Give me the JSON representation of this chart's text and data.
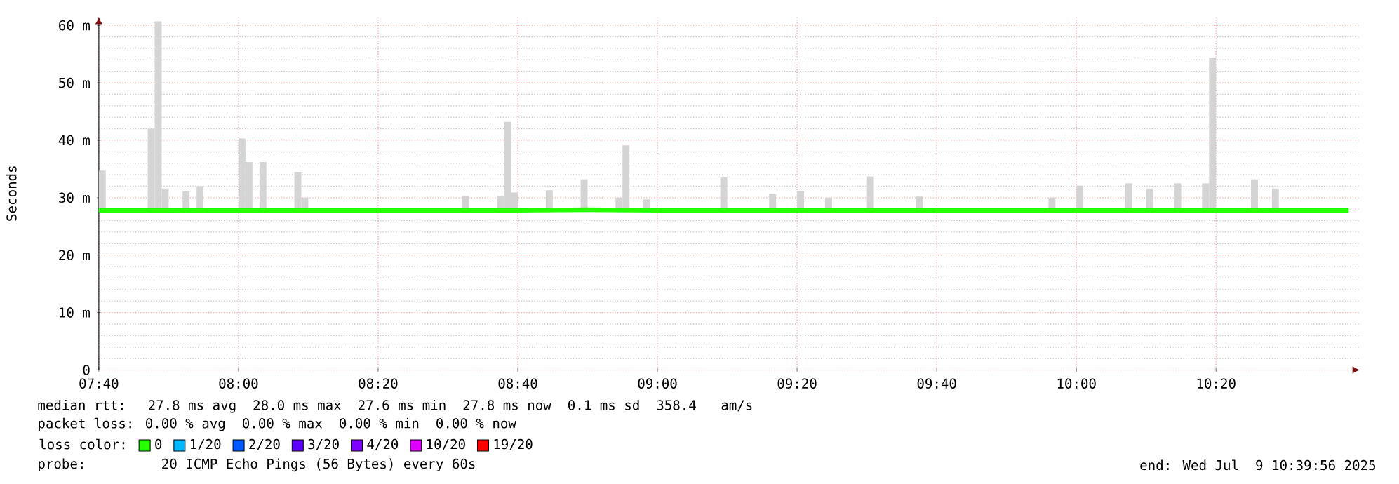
{
  "chart_data": {
    "type": "bar",
    "ylabel": "Seconds",
    "xlim": [
      7.6667,
      10.6767
    ],
    "xticks": [
      {
        "value": 7.6667,
        "label": "07:40"
      },
      {
        "value": 8,
        "label": "08:00"
      },
      {
        "value": 8.3333,
        "label": "08:20"
      },
      {
        "value": 8.6667,
        "label": "08:40"
      },
      {
        "value": 9,
        "label": "09:00"
      },
      {
        "value": 9.3333,
        "label": "09:20"
      },
      {
        "value": 9.6667,
        "label": "09:40"
      },
      {
        "value": 10,
        "label": "10:00"
      },
      {
        "value": 10.3333,
        "label": "10:20"
      }
    ],
    "ylim": [
      0,
      61.5
    ],
    "yticks": [
      0,
      {
        "value": 10,
        "label": "10 m"
      },
      {
        "value": 20,
        "label": "20 m"
      },
      {
        "value": 30,
        "label": "30 m"
      },
      {
        "value": 40,
        "label": "40 m"
      },
      {
        "value": 50,
        "label": "50 m"
      },
      {
        "value": 60,
        "label": "60 m"
      }
    ],
    "grid": true,
    "legend": "bottom",
    "legend_title": "loss color:",
    "series": [
      {
        "color": "#d4d4d4",
        "x": [
          7.675,
          7.7917,
          7.8083,
          7.825,
          7.875,
          7.9083,
          8.0083,
          8.025,
          8.0583,
          8.1417,
          8.1583,
          8.5417,
          8.625,
          8.6417,
          8.6583,
          8.7417,
          8.825,
          8.9083,
          8.925,
          8.975,
          9.1583,
          9.275,
          9.3417,
          9.4083,
          9.5083,
          9.625,
          9.9417,
          10.0083,
          10.125,
          10.175,
          10.2417,
          10.3083,
          10.325,
          10.425,
          10.475
        ],
        "base": [
          27.5,
          27.5,
          27.5,
          27.5,
          27.5,
          27.5,
          27.5,
          27.5,
          27.5,
          27.5,
          27.5,
          27.5,
          27.5,
          27.5,
          27.5,
          27.5,
          27.5,
          27.5,
          27.5,
          27.5,
          27.5,
          27.5,
          27.5,
          27.5,
          27.5,
          27.5,
          27.5,
          27.5,
          27.5,
          27.5,
          27.5,
          27.5,
          27.5,
          27.5,
          27.5
        ],
        "values": [
          7.2,
          14.5,
          33.2,
          4.1,
          3.6,
          4.5,
          12.8,
          8.7,
          8.7,
          7.0,
          2.5,
          2.8,
          2.8,
          15.7,
          3.4,
          3.8,
          5.7,
          2.5,
          11.6,
          2.2,
          6.0,
          3.1,
          3.6,
          2.5,
          6.2,
          2.7,
          2.5,
          4.6,
          5.0,
          4.1,
          5.0,
          5.0,
          26.9,
          5.7,
          4.1
        ]
      },
      {
        "type": "line",
        "name": "0",
        "color": "#26ff00",
        "x": [
          7.6667,
          7.8333,
          8.0,
          8.1667,
          8.3333,
          8.5,
          8.6667,
          8.8333,
          9.0,
          9.1667,
          9.3333,
          9.5,
          9.6667,
          9.8333,
          10.0,
          10.1667,
          10.3333,
          10.5,
          10.65
        ],
        "values": [
          27.8,
          27.8,
          27.8,
          27.8,
          27.8,
          27.8,
          27.8,
          27.9,
          27.8,
          27.8,
          27.8,
          27.8,
          27.8,
          27.8,
          27.8,
          27.8,
          27.8,
          27.8,
          27.8
        ]
      },
      {
        "type": "line",
        "name": "1/20",
        "color": "#00b8ff"
      },
      {
        "type": "line",
        "name": "2/20",
        "color": "#0059ff"
      },
      {
        "type": "line",
        "name": "3/20",
        "color": "#5e00ff"
      },
      {
        "type": "line",
        "name": "4/20",
        "color": "#7e00ff"
      },
      {
        "type": "line",
        "name": "10/20",
        "color": "#dd00ff"
      },
      {
        "type": "line",
        "name": "19/20",
        "color": "#ff0000"
      }
    ],
    "annotations": [
      "median rtt:  27.8 ms avg  28.0 ms max  27.6 ms min  27.8 ms now  0.1 ms sd  358.4   am/s",
      "packet loss: 0.00 % avg  0.00 % max  0.00 % min  0.00 % now",
      "probe:       20 ICMP Echo Pings (56 Bytes) every 60s",
      "end: Wed Jul  9 10:39:56 2025"
    ]
  }
}
